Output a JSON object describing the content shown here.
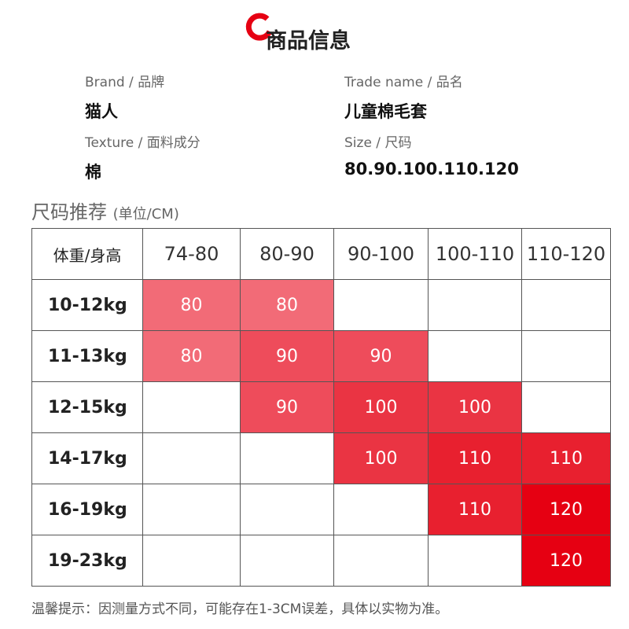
{
  "header": {
    "title": "商品信息"
  },
  "info": [
    {
      "label_en": "Brand",
      "label_cn": "品牌",
      "value": "猫人"
    },
    {
      "label_en": "Trade name",
      "label_cn": "品名",
      "value": "儿童棉毛套"
    },
    {
      "label_en": "Texture",
      "label_cn": "面料成分",
      "value": "棉"
    },
    {
      "label_en": "Size",
      "label_cn": "尺码",
      "value": "80.90.100.110.120"
    }
  ],
  "section": {
    "title": "尺码推荐",
    "unit": "(单位/CM)"
  },
  "table": {
    "header": [
      "体重/身高",
      "74-80",
      "80-90",
      "90-100",
      "100-110",
      "110-120"
    ],
    "rows": [
      [
        "10-12kg",
        "80",
        "80",
        null,
        null,
        null
      ],
      [
        "11-13kg",
        "80",
        "90",
        "90",
        null,
        null
      ],
      [
        "12-15kg",
        null,
        "90",
        "100",
        "100",
        null
      ],
      [
        "14-17kg",
        null,
        null,
        "100",
        "110",
        "110"
      ],
      [
        "16-19kg",
        null,
        null,
        null,
        "110",
        "120"
      ],
      [
        "19-23kg",
        null,
        null,
        null,
        null,
        "120"
      ]
    ],
    "fills": [
      [
        null,
        "#f26b77",
        "#f26b77",
        null,
        null,
        null
      ],
      [
        null,
        "#f26b77",
        "#ee4c5b",
        "#ee4c5b",
        null,
        null
      ],
      [
        null,
        null,
        "#ee4c5b",
        "#ea3443",
        "#ea3443",
        null
      ],
      [
        null,
        null,
        null,
        "#ea3443",
        "#e8202f",
        "#e8202f"
      ],
      [
        null,
        null,
        null,
        null,
        "#e8202f",
        "#e60012"
      ],
      [
        null,
        null,
        null,
        null,
        null,
        "#e60012"
      ]
    ]
  },
  "note": "温馨提示：因测量方式不同，可能存在1-3CM误差，具体以实物为准。"
}
